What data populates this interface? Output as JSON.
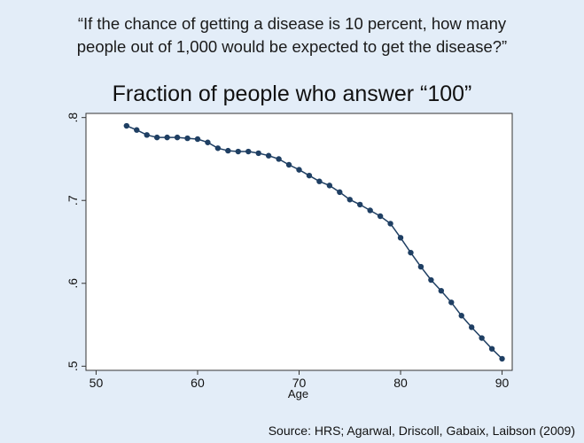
{
  "question": {
    "line1": "“If the chance of getting a disease is 10 percent, how many",
    "line2": "people out of 1,000 would be expected to get the disease?”"
  },
  "source": "Source: HRS; Agarwal, Driscoll, Gabaix, Laibson (2009)",
  "chart_data": {
    "type": "line",
    "title": "Fraction of people who answer “100”",
    "xlabel": "Age",
    "ylabel": "",
    "xlim": [
      49,
      91
    ],
    "ylim": [
      0.495,
      0.805
    ],
    "xticks": [
      50,
      60,
      70,
      80,
      90
    ],
    "xtick_labels": [
      "50",
      "60",
      "70",
      "80",
      "90"
    ],
    "yticks": [
      0.5,
      0.6,
      0.7,
      0.8
    ],
    "ytick_labels": [
      ".5",
      ".6",
      ".7",
      ".8"
    ],
    "grid": false,
    "legend": "none",
    "colors": {
      "line": "#1f3f63",
      "marker": "#1f3f63",
      "plot_bg": "#ffffff",
      "frame": "#333333"
    },
    "series": [
      {
        "x": [
          53,
          54,
          55,
          56,
          57,
          58,
          59,
          60,
          61,
          62,
          63,
          64,
          65,
          66,
          67,
          68,
          69,
          70,
          71,
          72,
          73,
          74,
          75,
          76,
          77,
          78,
          79,
          80,
          81,
          82,
          83,
          84,
          85,
          86,
          87,
          88,
          89,
          90
        ],
        "y": [
          0.79,
          0.785,
          0.779,
          0.776,
          0.776,
          0.776,
          0.775,
          0.774,
          0.77,
          0.763,
          0.76,
          0.759,
          0.759,
          0.757,
          0.754,
          0.75,
          0.743,
          0.737,
          0.73,
          0.723,
          0.718,
          0.71,
          0.701,
          0.695,
          0.688,
          0.681,
          0.672,
          0.655,
          0.637,
          0.62,
          0.604,
          0.591,
          0.577,
          0.561,
          0.547,
          0.534,
          0.521,
          0.509
        ]
      }
    ]
  }
}
